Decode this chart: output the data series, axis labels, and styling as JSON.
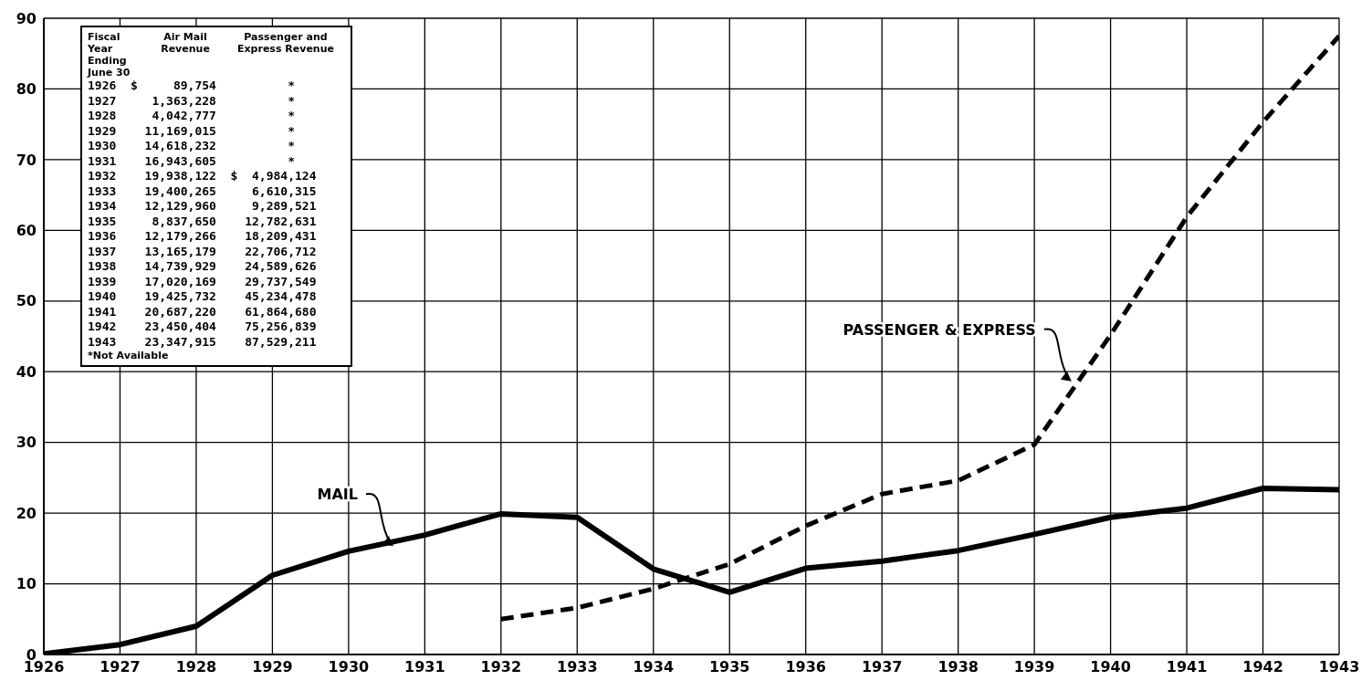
{
  "chart_data": [
    {
      "type": "line",
      "x": [
        1926,
        1927,
        1928,
        1929,
        1930,
        1931,
        1932,
        1933,
        1934,
        1935,
        1936,
        1937,
        1938,
        1939,
        1940,
        1941,
        1942,
        1943
      ],
      "series": [
        {
          "color": "#000000",
          "line_style": "solid",
          "values": [
            0.1,
            1.4,
            4.0,
            11.2,
            14.6,
            16.9,
            19.9,
            19.4,
            12.1,
            8.8,
            12.2,
            13.2,
            14.7,
            17.0,
            19.4,
            20.7,
            23.5,
            23.3
          ]
        },
        {
          "color": "#000000",
          "line_style": "dashed",
          "values": [
            null,
            null,
            null,
            null,
            null,
            null,
            5.0,
            6.6,
            9.3,
            12.8,
            18.2,
            22.7,
            24.6,
            29.7,
            45.2,
            61.9,
            75.3,
            87.5
          ]
        }
      ],
      "xlim": [
        1926,
        1943
      ],
      "xticks": [
        1926,
        1927,
        1928,
        1929,
        1930,
        1931,
        1932,
        1933,
        1934,
        1935,
        1936,
        1937,
        1938,
        1939,
        1940,
        1941,
        1942,
        1943
      ],
      "ylim": [
        0,
        90
      ],
      "yticks": [
        0,
        10,
        20,
        30,
        40,
        50,
        60,
        70,
        80,
        90
      ],
      "grid": true,
      "legend": false,
      "marker": "none",
      "annotations": [
        {
          "text": "MAIL",
          "x": 1930.6,
          "y": 15.2
        },
        {
          "text": "PASSENGER & EXPRESS",
          "x": 1939.5,
          "y": 38.5
        }
      ]
    },
    {
      "type": "other",
      "annotations": [
        "Fiscal Year Ending June 30",
        "Air Mail Revenue",
        "Passenger and Express Revenue",
        "1926 $ 89,754 *",
        "1927 1,363,228 *",
        "1928 4,042,777 *",
        "1929 11,169,015 *",
        "1930 14,618,232 *",
        "1931 16,943,605 *",
        "1932 19,938,122 $ 4,984,124",
        "1933 19,400,265 6,610,315",
        "1934 12,129,960 9,289,521",
        "1935 8,837,650 12,782,631",
        "1936 12,179,266 18,209,431",
        "1937 13,165,179 22,706,712",
        "1938 14,739,929 24,589,626",
        "1939 17,020,169 29,737,549",
        "1940 19,425,732 45,234,478",
        "1941 20,687,220 61,864,680",
        "1942 23,450,404 75,256,839",
        "1943 23,347,915 87,529,211",
        "*Not Available"
      ]
    }
  ]
}
